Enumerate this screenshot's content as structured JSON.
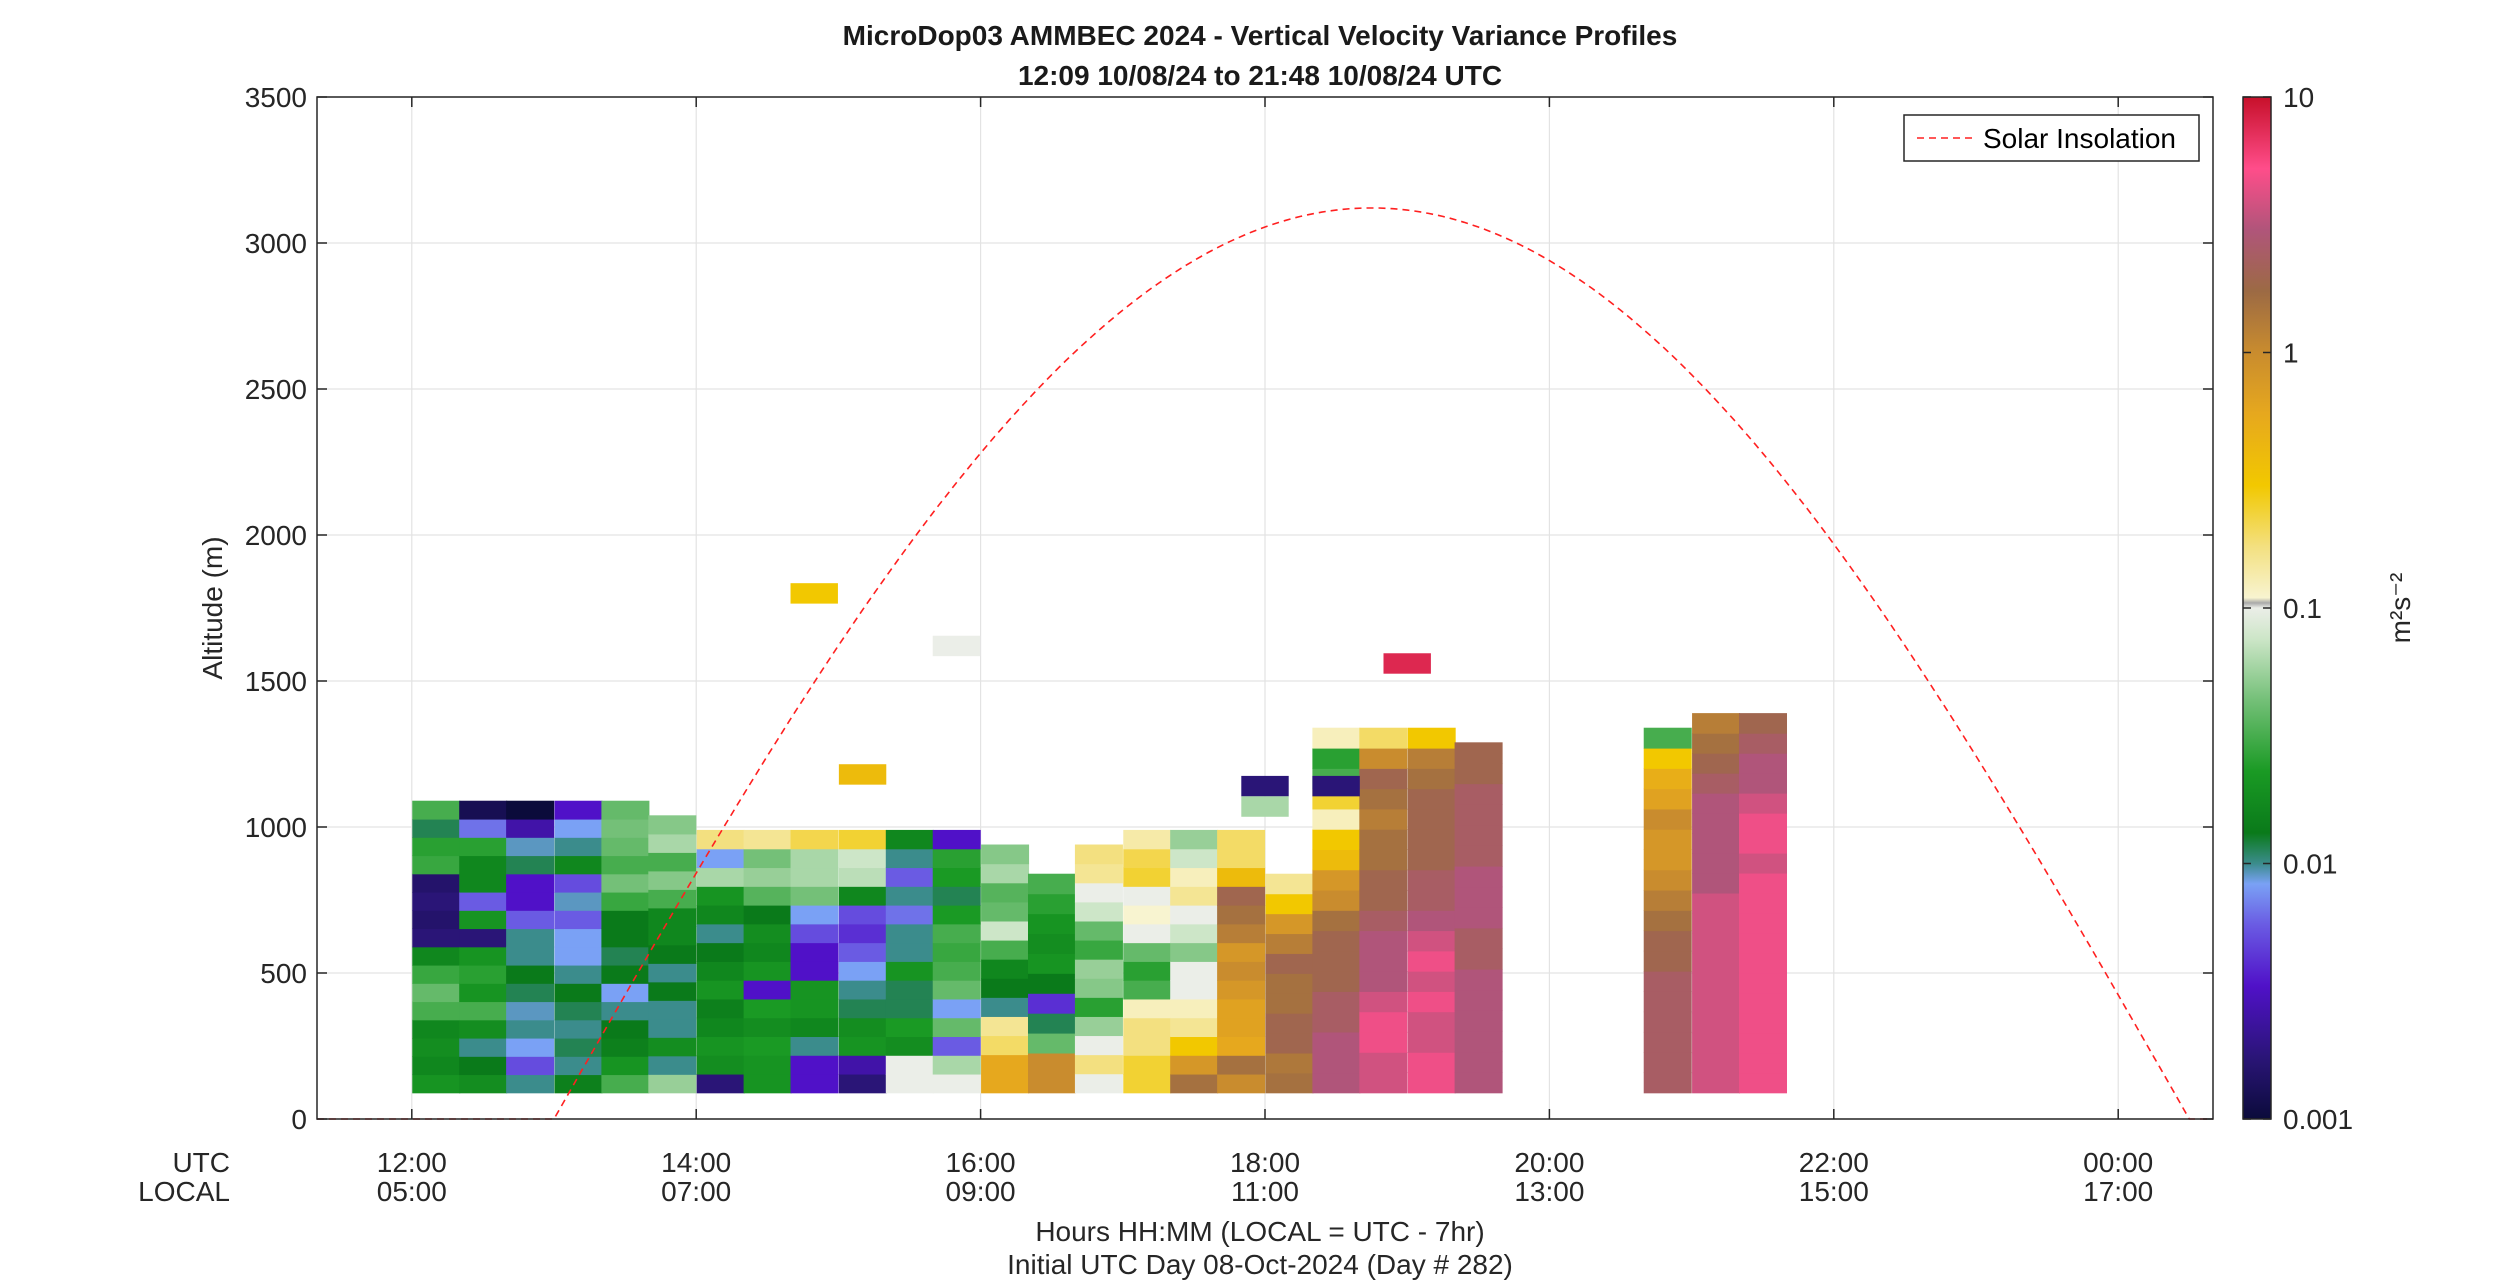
{
  "chart_data": {
    "type": "heatmap",
    "title": "MicroDop03 AMMBEC 2024 - Vertical Velocity Variance Profiles",
    "subtitle": "12:09 10/08/24 to 21:48 10/08/24  UTC",
    "ylabel": "Altitude (m)",
    "xlabel": "Hours HH:MM  (LOCAL = UTC - 7hr)",
    "xlabel2": "Initial UTC Day 08-Oct-2024 (Day # 282)",
    "row_label_utc": "UTC",
    "row_label_local": "LOCAL",
    "xlim": [
      11.3333,
      24.6667
    ],
    "ylim": [
      0,
      3500
    ],
    "grid": true,
    "xticks": [
      {
        "x": 12,
        "utc": "12:00",
        "local": "05:00"
      },
      {
        "x": 14,
        "utc": "14:00",
        "local": "07:00"
      },
      {
        "x": 16,
        "utc": "16:00",
        "local": "09:00"
      },
      {
        "x": 18,
        "utc": "18:00",
        "local": "11:00"
      },
      {
        "x": 20,
        "utc": "20:00",
        "local": "13:00"
      },
      {
        "x": 22,
        "utc": "22:00",
        "local": "15:00"
      },
      {
        "x": 24,
        "utc": "00:00",
        "local": "17:00"
      }
    ],
    "yticks": [
      "0",
      "500",
      "1000",
      "1500",
      "2000",
      "2500",
      "3000",
      "3500"
    ],
    "colorbar": {
      "label": "m²s⁻²",
      "scale": "log",
      "range": [
        0.001,
        10
      ],
      "ticks": [
        "0.001",
        "0.01",
        "0.1",
        "1",
        "10"
      ]
    },
    "legend": {
      "position": "top-right",
      "entries": [
        "Solar Insolation"
      ]
    },
    "solar_insolation_curve": {
      "style": "dashed",
      "color": "#ff0000",
      "sunrise_utc": 13.0,
      "sunset_utc": 24.5,
      "zero_before": 11.3333,
      "peak_altitude_equivalent": 3120
    },
    "profiles": [
      {
        "t": 12.17,
        "h0": 90,
        "h1": 1090,
        "cols": [
          26,
          24,
          25,
          24,
          30,
          32,
          29,
          24,
          5,
          4,
          5,
          4,
          29,
          28,
          21,
          30
        ]
      },
      {
        "t": 12.5,
        "h0": 90,
        "h1": 1090,
        "cols": [
          25,
          22,
          20,
          25,
          30,
          26,
          28,
          26,
          5,
          26,
          15,
          24,
          24,
          28,
          16,
          2
        ]
      },
      {
        "t": 12.83,
        "h0": 90,
        "h1": 1090,
        "cols": [
          20,
          14,
          18,
          20,
          19,
          21,
          22,
          20,
          20,
          15,
          10,
          10,
          21,
          19,
          8,
          0
        ]
      },
      {
        "t": 13.17,
        "h0": 90,
        "h1": 1090,
        "cols": [
          23,
          20,
          21,
          20,
          21,
          22,
          20,
          18,
          18,
          15,
          19,
          14,
          24,
          20,
          18,
          10
        ]
      },
      {
        "t": 13.5,
        "h0": 90,
        "h1": 1090,
        "cols": [
          30,
          26,
          23,
          22,
          20,
          18,
          22,
          21,
          22,
          22,
          29,
          33,
          30,
          32,
          33,
          32
        ]
      },
      {
        "t": 13.83,
        "h0": 90,
        "h1": 1040,
        "cols": [
          35,
          20,
          25,
          20,
          20,
          22,
          20,
          22,
          24,
          24,
          30,
          34,
          30,
          36,
          34
        ]
      },
      {
        "t": 14.17,
        "h0": 90,
        "h1": 990,
        "cols": [
          5,
          25,
          26,
          24,
          23,
          26,
          24,
          22,
          20,
          24,
          26,
          36,
          18,
          45
        ]
      },
      {
        "t": 14.5,
        "h0": 90,
        "h1": 990,
        "cols": [
          26,
          26,
          27,
          25,
          27,
          10,
          26,
          24,
          25,
          22,
          31,
          35,
          33,
          44
        ]
      },
      {
        "t": 14.83,
        "h0": 90,
        "h1": 990,
        "cols": [
          10,
          10,
          20,
          24,
          26,
          26,
          10,
          10,
          14,
          18,
          33,
          36,
          36,
          47
        ]
      },
      {
        "t": 15.17,
        "h0": 90,
        "h1": 990,
        "cols": [
          5,
          8,
          26,
          25,
          21,
          20,
          18,
          15,
          12,
          14,
          24,
          37,
          38,
          48
        ]
      },
      {
        "t": 15.5,
        "h0": 90,
        "h1": 990,
        "cols": [
          40,
          40,
          25,
          27,
          21,
          21,
          26,
          20,
          20,
          16,
          20,
          15,
          20,
          24
        ]
      },
      {
        "t": 15.83,
        "h0": 90,
        "h1": 990,
        "cols": [
          40,
          36,
          15,
          32,
          18,
          32,
          30,
          29,
          30,
          27,
          21,
          27,
          28,
          10
        ]
      },
      {
        "t": 16.17,
        "h0": 90,
        "h1": 940,
        "cols": [
          55,
          55,
          46,
          44,
          20,
          22,
          24,
          30,
          38,
          32,
          31,
          36,
          34
        ]
      },
      {
        "t": 16.5,
        "h0": 90,
        "h1": 840,
        "cols": [
          60,
          60,
          32,
          21,
          12,
          22,
          26,
          25,
          26,
          28,
          30
        ]
      },
      {
        "t": 16.83,
        "h0": 90,
        "h1": 940,
        "cols": [
          40,
          45,
          40,
          35,
          28,
          34,
          35,
          29,
          32,
          38,
          40,
          44,
          45
        ]
      },
      {
        "t": 17.17,
        "h0": 90,
        "h1": 990,
        "cols": [
          48,
          48,
          45,
          45,
          42,
          30,
          28,
          32,
          40,
          41,
          40,
          48,
          47,
          43
        ]
      },
      {
        "t": 17.5,
        "h0": 90,
        "h1": 990,
        "cols": [
          64,
          58,
          50,
          44,
          42,
          40,
          40,
          34,
          38,
          40,
          44,
          42,
          38,
          35
        ]
      },
      {
        "t": 17.83,
        "h0": 90,
        "h1": 990,
        "cols": [
          60,
          64,
          55,
          56,
          56,
          58,
          60,
          58,
          62,
          64,
          66,
          52,
          46,
          46
        ]
      },
      {
        "t": 18.17,
        "h0": 90,
        "h1": 840,
        "cols": [
          64,
          63,
          66,
          66,
          64,
          64,
          66,
          62,
          58,
          50,
          44
        ]
      },
      {
        "t": 18.5,
        "h0": 90,
        "h1": 1340,
        "cols": [
          70,
          70,
          70,
          68,
          68,
          66,
          66,
          66,
          64,
          60,
          58,
          52,
          50,
          42,
          48,
          30,
          28,
          42
        ]
      },
      {
        "t": 18.83,
        "h0": 90,
        "h1": 1340,
        "cols": [
          72,
          72,
          74,
          74,
          72,
          70,
          70,
          70,
          68,
          66,
          66,
          64,
          64,
          62,
          64,
          66,
          60,
          46
        ]
      },
      {
        "t": 19.17,
        "h0": 90,
        "h1": 1340,
        "cols": [
          74,
          74,
          72,
          72,
          74,
          72,
          74,
          72,
          70,
          68,
          68,
          66,
          66,
          66,
          66,
          64,
          62,
          50
        ]
      },
      {
        "t": 19.5,
        "h0": 90,
        "h1": 1290,
        "cols": [
          70,
          70,
          70,
          70,
          70,
          70,
          68,
          68,
          70,
          70,
          70,
          68,
          68,
          68,
          68,
          66,
          66
        ]
      },
      {
        "t": 20.83,
        "h0": 90,
        "h1": 1340,
        "cols": [
          68,
          68,
          68,
          68,
          68,
          68,
          66,
          66,
          64,
          62,
          60,
          58,
          58,
          60,
          56,
          54,
          50,
          30
        ]
      },
      {
        "t": 21.17,
        "h0": 90,
        "h1": 1390,
        "cols": [
          72,
          72,
          72,
          72,
          72,
          72,
          72,
          72,
          72,
          72,
          70,
          70,
          70,
          70,
          70,
          68,
          66,
          64,
          62
        ]
      },
      {
        "t": 21.5,
        "h0": 90,
        "h1": 1390,
        "cols": [
          74,
          74,
          74,
          74,
          74,
          74,
          74,
          74,
          74,
          74,
          74,
          72,
          74,
          74,
          72,
          70,
          70,
          68,
          66
        ]
      }
    ],
    "isolated_cells": [
      {
        "t": 14.83,
        "h": 1800,
        "color_index": 50
      },
      {
        "t": 15.17,
        "h": 1180,
        "color_index": 52
      },
      {
        "t": 15.83,
        "h": 1620,
        "color_index": 40
      },
      {
        "t": 19.0,
        "h": 1560,
        "color_index": 78
      },
      {
        "t": 18.0,
        "h": 1140,
        "color_index": 5
      },
      {
        "t": 18.0,
        "h": 1070,
        "color_index": 36
      },
      {
        "t": 18.5,
        "h": 1140,
        "color_index": 5
      }
    ]
  }
}
